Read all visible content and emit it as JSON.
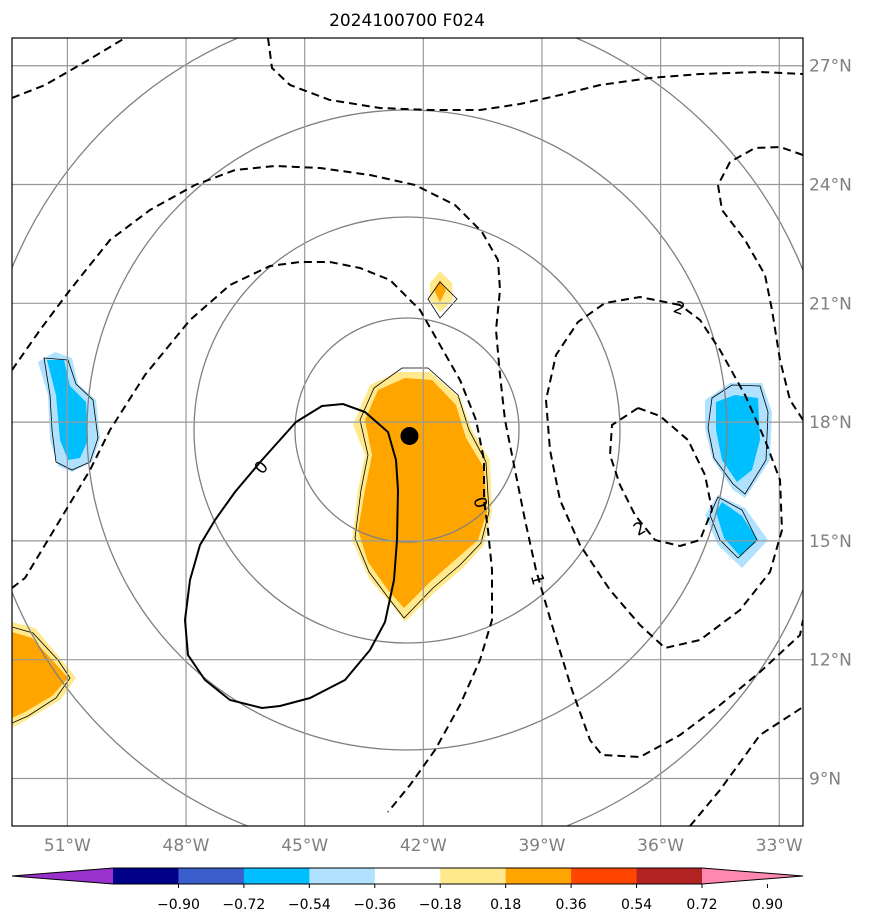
{
  "chart_data": {
    "type": "map",
    "title": "2024100700 F024",
    "x_ticks": [
      "51°W",
      "48°W",
      "45°W",
      "42°W",
      "39°W",
      "36°W",
      "33°W"
    ],
    "y_ticks": [
      "27°N",
      "24°N",
      "21°N",
      "18°N",
      "15°N",
      "12°N",
      "9°N"
    ],
    "lon_values": [
      -51,
      -48,
      -45,
      -42,
      -39,
      -36,
      -33
    ],
    "lat_values": [
      27,
      24,
      21,
      18,
      15,
      12,
      9
    ],
    "xlim": [
      -52.4,
      -32.4
    ],
    "ylim": [
      7.8,
      27.7
    ],
    "grid": true,
    "colorbar": {
      "ticks": [
        "−0.90",
        "−0.72",
        "−0.54",
        "−0.36",
        "−0.18",
        "0.18",
        "0.36",
        "0.54",
        "0.72",
        "0.90"
      ],
      "colors": [
        "#9932cc",
        "#00008b",
        "#3a5fcd",
        "#00bfff",
        "#b0e2ff",
        "#ffffff",
        "#ffe98c",
        "#ffa500",
        "#ff4500",
        "#b22222",
        "#ff88b0"
      ]
    },
    "center_marker": {
      "lon": -42.35,
      "lat": 17.65
    },
    "contour_labels": [
      "0",
      "0",
      "1",
      "2",
      "2"
    ],
    "colors": {
      "orange": "#ffa500",
      "yellow": "#ffe98c",
      "cyan": "#00bfff",
      "lightblue": "#b0e2ff"
    }
  }
}
